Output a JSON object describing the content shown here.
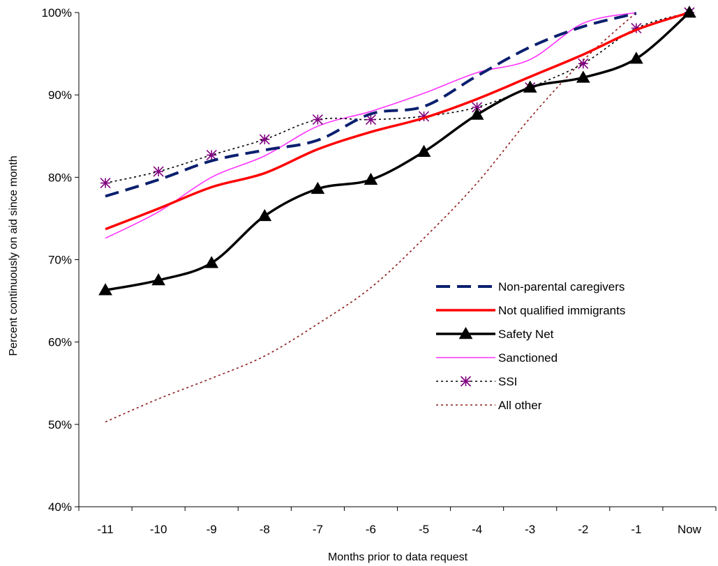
{
  "chart_data": {
    "type": "line",
    "title": "",
    "xlabel": "Months prior to data request",
    "ylabel": "Percent continuously on aid since month",
    "categories": [
      "-11",
      "-10",
      "-9",
      "-8",
      "-7",
      "-6",
      "-5",
      "-4",
      "-3",
      "-2",
      "-1",
      "Now"
    ],
    "ylim": [
      40,
      100
    ],
    "yticks": [
      "40%",
      "50%",
      "60%",
      "70%",
      "80%",
      "90%",
      "100%"
    ],
    "grid": false,
    "legend_position": "right",
    "series": [
      {
        "name": "Non-parental caregivers",
        "color": "#0a1f6e",
        "style": "long-dash",
        "marker": "none",
        "values": [
          77.7,
          79.7,
          82.0,
          83.3,
          84.5,
          87.7,
          88.6,
          92.3,
          95.8,
          98.3,
          99.9,
          null
        ]
      },
      {
        "name": "Not qualified immigrants",
        "color": "#ff0000",
        "style": "solid-thick",
        "marker": "none",
        "values": [
          73.7,
          76.2,
          78.8,
          80.5,
          83.4,
          85.5,
          87.2,
          89.5,
          92.2,
          94.9,
          97.9,
          100.0
        ]
      },
      {
        "name": "Safety Net",
        "color": "#000000",
        "style": "solid-thick",
        "marker": "triangle",
        "values": [
          66.3,
          67.5,
          69.6,
          75.3,
          78.6,
          79.7,
          83.1,
          87.6,
          90.9,
          92.1,
          94.4,
          100.0
        ]
      },
      {
        "name": "Sanctioned",
        "color": "#ff33ff",
        "style": "solid-thin",
        "marker": "none",
        "values": [
          72.6,
          75.8,
          80.0,
          82.6,
          86.2,
          88.0,
          90.2,
          92.7,
          94.3,
          98.7,
          100.0,
          null
        ]
      },
      {
        "name": "SSI",
        "color": "#000000",
        "marker_color": "#800080",
        "style": "dotted",
        "marker": "asterisk",
        "values": [
          79.3,
          80.7,
          82.7,
          84.6,
          87.0,
          87.0,
          87.4,
          88.5,
          90.9,
          93.8,
          98.1,
          100.0
        ]
      },
      {
        "name": "All other",
        "color": "#8b1a1a",
        "style": "dotted",
        "marker": "none",
        "values": [
          50.3,
          53.1,
          55.6,
          58.3,
          62.2,
          66.6,
          72.6,
          79.3,
          87.2,
          94.2,
          100.0,
          null
        ]
      }
    ]
  }
}
